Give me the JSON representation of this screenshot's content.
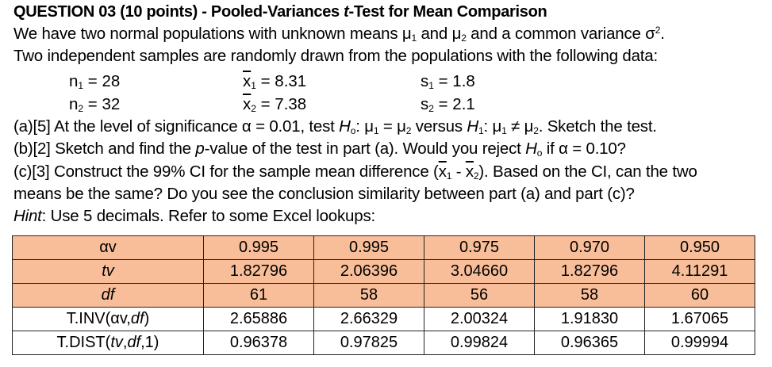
{
  "question": {
    "number": "QUESTION 03",
    "points": "(10 points)",
    "title": "QUESTION 03 (10 points) - Pooled-Variances t-Test for Mean Comparison",
    "title_prefix": "QUESTION 03 (10 points) - Pooled-Variances ",
    "title_italic": "t",
    "title_suffix": "-Test for Mean Comparison"
  },
  "intro": {
    "line1_a": "We have two normal populations with unknown means μ",
    "line1_sub1": "1",
    "line1_b": " and μ",
    "line1_sub2": "2",
    "line1_c": " and a common variance σ",
    "line1_sup": "2",
    "line1_d": ".",
    "line2": "Two independent samples are randomly drawn from the populations with the following data:"
  },
  "given": {
    "n1": {
      "sym": "n",
      "sub": "1",
      "val": " = 28"
    },
    "n2": {
      "sym": "n",
      "sub": "2",
      "val": " = 32"
    },
    "x1": {
      "sym": "x",
      "sub": "1",
      "val": " = 8.31"
    },
    "x2": {
      "sym": "x",
      "sub": "2",
      "val": " = 7.38"
    },
    "s1": {
      "sym": "s",
      "sub": "1",
      "val": " = 1.8"
    },
    "s2": {
      "sym": "s",
      "sub": "2",
      "val": " = 2.1"
    }
  },
  "parts": {
    "a": {
      "t1": "(a)[5] At the level of significance α = 0.01, test ",
      "h0": "H",
      "h0sub": "o",
      "t2": ": μ",
      "s1": "1",
      "t3": " = μ",
      "s2": "2",
      "t4": " versus ",
      "h1": "H",
      "h1sub": "1",
      "t5": ": μ",
      "s3": "1",
      "t6": " ≠ μ",
      "s4": "2",
      "t7": ". Sketch the test."
    },
    "b": {
      "t1": "(b)[2] Sketch and find the ",
      "p": "p",
      "t2": "-value of the test in part (a). Would you reject ",
      "h0": "H",
      "h0sub": "o",
      "t3": " if α = 0.10?"
    },
    "c": {
      "t1": "(c)[3] Construct the 99% CI for the sample mean difference (",
      "x1": "x",
      "x1sub": "1",
      "t2": " - ",
      "x2": "x",
      "x2sub": "2",
      "t3": "). Based on the CI, can the two",
      "line2": "means be the same? Do you see the conclusion similarity between part (a) and part (c)?"
    },
    "hint": {
      "label": "Hint",
      "text": ": Use 5 decimals. Refer to some Excel lookups:"
    }
  },
  "table": {
    "colors": {
      "header_bg": "#F8BE99",
      "body_bg": "#FFFFFF",
      "border": "#222222"
    },
    "rows": [
      {
        "label": "αv",
        "label_italic": false,
        "values": [
          "0.995",
          "0.995",
          "0.975",
          "0.970",
          "0.950"
        ]
      },
      {
        "label": "tv",
        "label_italic": true,
        "values": [
          "1.82796",
          "2.06396",
          "3.04660",
          "1.82796",
          "4.11291"
        ]
      },
      {
        "label": "df",
        "label_italic": true,
        "values": [
          "61",
          "58",
          "56",
          "58",
          "60"
        ]
      },
      {
        "label_a": "T.INV(αv,",
        "label_b": "df",
        "label_c": ")",
        "values": [
          "2.65886",
          "2.66329",
          "2.00324",
          "1.91830",
          "1.67065"
        ]
      },
      {
        "label_a": "T.DIST(",
        "label_b": "tv",
        "label_c": ",",
        "label_d": "df",
        "label_e": ",1)",
        "values": [
          "0.96378",
          "0.97825",
          "0.99824",
          "0.96365",
          "0.99994"
        ]
      }
    ]
  }
}
